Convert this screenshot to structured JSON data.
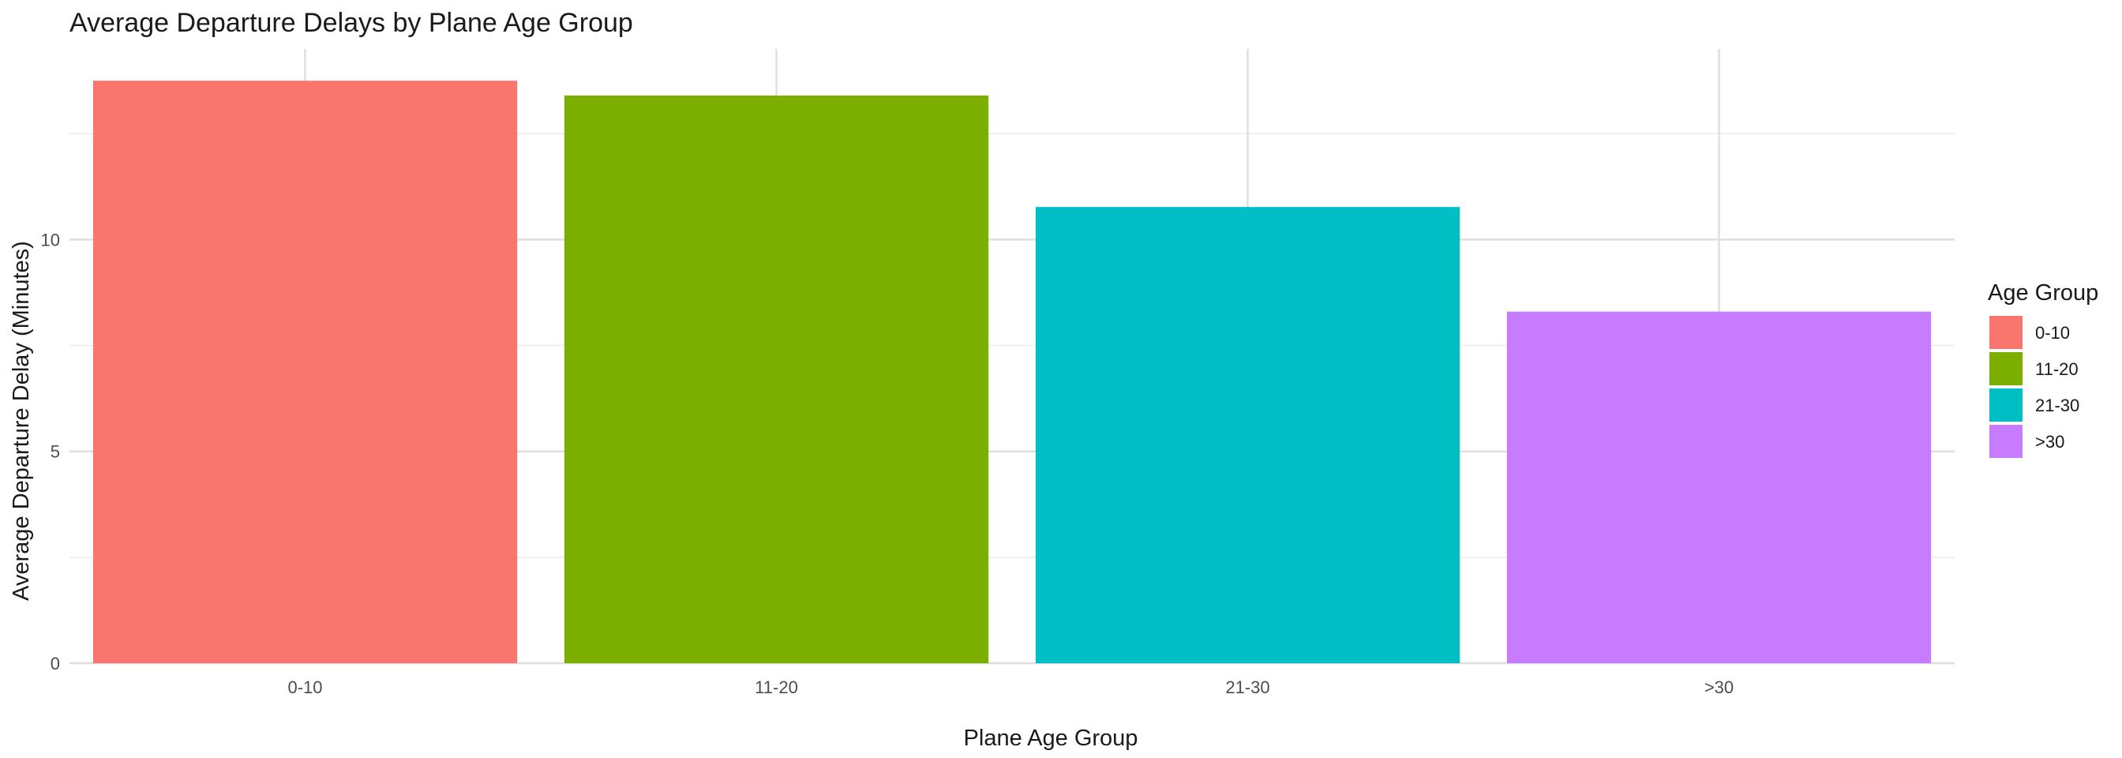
{
  "chart_data": {
    "type": "bar",
    "title": "Average Departure Delays by Plane Age Group",
    "xlabel": "Plane Age Group",
    "ylabel": "Average Departure Delay (Minutes)",
    "categories": [
      "0-10",
      "11-20",
      "21-30",
      ">30"
    ],
    "values": [
      13.75,
      13.4,
      10.77,
      8.3
    ],
    "colors": [
      "#F8766D",
      "#7CAE00",
      "#00BFC4",
      "#C77CFF"
    ],
    "ylim": [
      0,
      14.5
    ],
    "yticks": [
      "0",
      "5",
      "10"
    ],
    "ytick_values": [
      0,
      5,
      10
    ],
    "grid": true,
    "legend": {
      "title": "Age Group",
      "position": "right",
      "entries": [
        "0-10",
        "11-20",
        "21-30",
        ">30"
      ]
    }
  }
}
